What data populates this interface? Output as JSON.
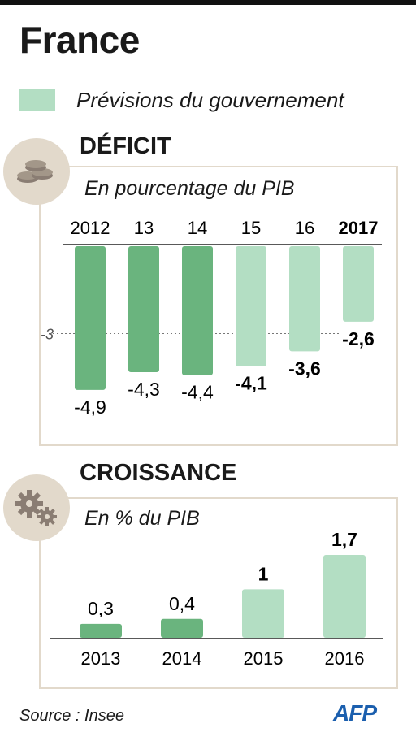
{
  "title": "France",
  "legend": {
    "label": "Prévisions du gouvernement",
    "forecast_color": "#b3dec3"
  },
  "colors": {
    "actual": "#6ab47e",
    "forecast": "#b3dec3",
    "panel_border": "#e2d9cb",
    "icon_bg": "#e2d9cb",
    "icon_fg": "#8a7d73"
  },
  "icons": {
    "deficit": "coins-icon",
    "croissance": "gears-icon",
    "logo": "afp-logo"
  },
  "source": "Source : Insee",
  "logo_text": "AFP",
  "chart_data": [
    {
      "type": "bar",
      "title": "DÉFICIT",
      "subtitle": "En pourcentage du PIB",
      "categories": [
        "2012",
        "13",
        "14",
        "15",
        "16",
        "2017"
      ],
      "values": [
        -4.9,
        -4.3,
        -4.4,
        -4.1,
        -3.6,
        -2.6
      ],
      "value_labels": [
        "-4,9",
        "-4,3",
        "-4,4",
        "-4,1",
        "-3,6",
        "-2,6"
      ],
      "forecast": [
        false,
        false,
        false,
        true,
        true,
        true
      ],
      "reference_line": {
        "value": -3,
        "label": "-3"
      },
      "ylim": [
        -5,
        0
      ],
      "category_axis": "top"
    },
    {
      "type": "bar",
      "title": "CROISSANCE",
      "subtitle": "En % du PIB",
      "categories": [
        "2013",
        "2014",
        "2015",
        "2016"
      ],
      "values": [
        0.3,
        0.4,
        1,
        1.7
      ],
      "value_labels": [
        "0,3",
        "0,4",
        "1",
        "1,7"
      ],
      "forecast": [
        false,
        false,
        true,
        true
      ],
      "ylim": [
        0,
        1.7
      ],
      "category_axis": "bottom"
    }
  ]
}
